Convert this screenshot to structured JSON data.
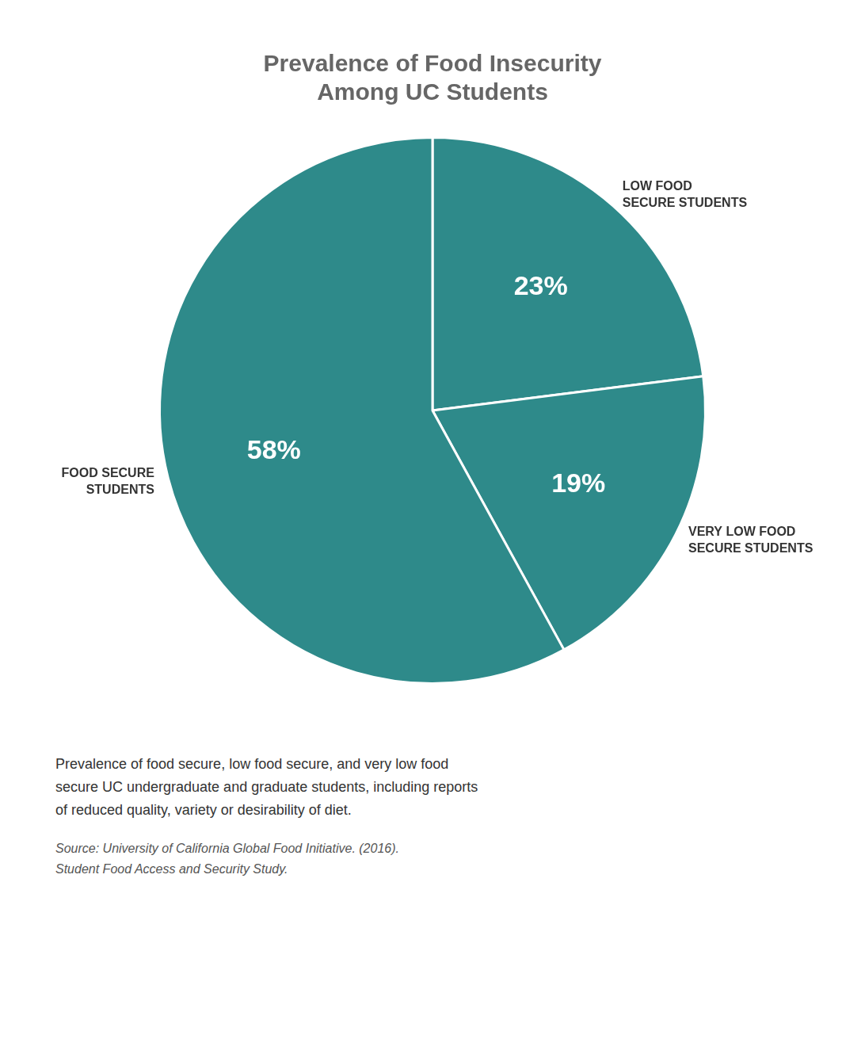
{
  "chart_data": {
    "type": "pie",
    "title": "Prevalence of Food Insecurity\nAmong UC Students",
    "categories": [
      "LOW FOOD\nSECURE STUDENTS",
      "VERY LOW FOOD\nSECURE STUDENTS",
      "FOOD SECURE\nSTUDENTS"
    ],
    "values": [
      23,
      19,
      58
    ],
    "value_labels": [
      "23%",
      "19%",
      "58%"
    ],
    "color": "#2e8a8a",
    "data_labels": true,
    "annotations": [
      "Prevalence of food secure, low food secure, and very low food\nsecure UC undergraduate and graduate students, including reports\nof reduced quality, variety or desirability of diet.",
      "Source: University of California Global Food Initiative. (2016).\nStudent Food Access and Security Study."
    ]
  }
}
